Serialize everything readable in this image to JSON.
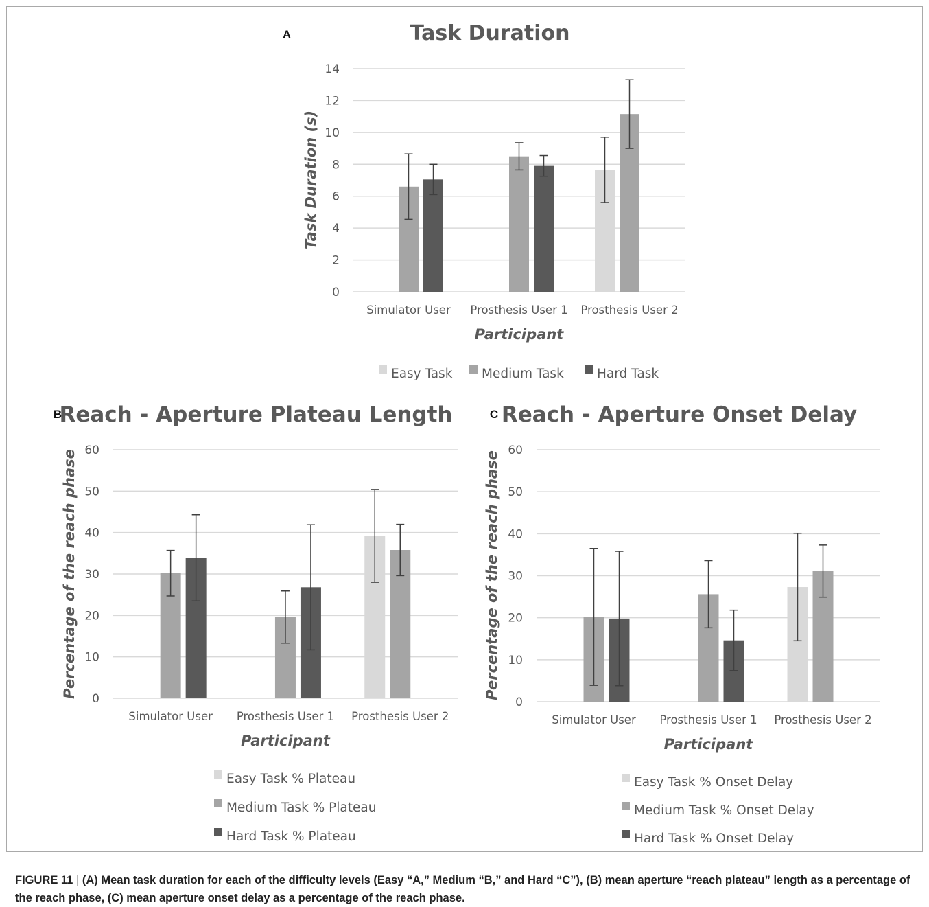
{
  "figure": {
    "caption_label": "FIGURE 11",
    "caption_sep": "|",
    "caption_text": "(A) Mean task duration for each of the difficulty levels (Easy “A,” Medium “B,” and Hard “C”), (B) mean aperture “reach plateau” length as a percentage of the reach phase, (C) mean aperture onset delay as a percentage of the reach phase."
  },
  "colors": {
    "easy": "#d9d9d9",
    "medium": "#a5a5a5",
    "hard": "#595959",
    "grid": "#d9d9d9",
    "text": "#595959",
    "error_bar": "#404040"
  },
  "chart_data": [
    {
      "panel_label": "A",
      "type": "bar",
      "title": "Task Duration",
      "xlabel": "Participant",
      "ylabel": "Task Duration (s)",
      "ylim": [
        0,
        14
      ],
      "ticks": [
        "0",
        "2",
        "4",
        "6",
        "8",
        "10",
        "12",
        "14"
      ],
      "categories": [
        "Simulator User",
        "Prosthesis User 1",
        "Prosthesis User 2"
      ],
      "legend_position": "bottom",
      "series": [
        {
          "name": "Easy Task",
          "color": "#d9d9d9",
          "values": [
            null,
            null,
            7.65
          ],
          "err_low": [
            null,
            null,
            2.05
          ],
          "err_high": [
            null,
            null,
            2.05
          ]
        },
        {
          "name": "Medium Task",
          "color": "#a5a5a5",
          "values": [
            6.6,
            8.5,
            11.15
          ],
          "err_low": [
            2.05,
            0.85,
            2.15
          ],
          "err_high": [
            2.05,
            0.85,
            2.15
          ]
        },
        {
          "name": "Hard Task",
          "color": "#595959",
          "values": [
            7.05,
            7.9,
            null
          ],
          "err_low": [
            0.95,
            0.65,
            null
          ],
          "err_high": [
            0.95,
            0.65,
            null
          ]
        }
      ]
    },
    {
      "panel_label": "B",
      "type": "bar",
      "title": "Reach - Aperture Plateau Length",
      "xlabel": "Participant",
      "ylabel": "Percentage of the reach phase",
      "ylim": [
        0,
        60
      ],
      "ticks": [
        "0",
        "10",
        "20",
        "30",
        "40",
        "50",
        "60"
      ],
      "categories": [
        "Simulator User",
        "Prosthesis User 1",
        "Prosthesis User 2"
      ],
      "legend_position": "bottom",
      "series": [
        {
          "name": "Easy Task % Plateau",
          "color": "#d9d9d9",
          "values": [
            null,
            null,
            39.2
          ],
          "err_low": [
            null,
            null,
            11.2
          ],
          "err_high": [
            null,
            null,
            11.2
          ]
        },
        {
          "name": "Medium Task % Plateau",
          "color": "#a5a5a5",
          "values": [
            30.2,
            19.6,
            35.8
          ],
          "err_low": [
            5.5,
            6.3,
            6.2
          ],
          "err_high": [
            5.5,
            6.3,
            6.2
          ]
        },
        {
          "name": "Hard Task % Plateau",
          "color": "#595959",
          "values": [
            33.9,
            26.8,
            null
          ],
          "err_low": [
            10.4,
            15.1,
            null
          ],
          "err_high": [
            10.4,
            15.1,
            null
          ]
        }
      ]
    },
    {
      "panel_label": "C",
      "type": "bar",
      "title": "Reach - Aperture Onset Delay",
      "xlabel": "Participant",
      "ylabel": "Percentage of the reach phase",
      "ylim": [
        0,
        60
      ],
      "ticks": [
        "0",
        "10",
        "20",
        "30",
        "40",
        "50",
        "60"
      ],
      "categories": [
        "Simulator User",
        "Prosthesis User 1",
        "Prosthesis User 2"
      ],
      "legend_position": "bottom",
      "series": [
        {
          "name": "Easy Task % Onset Delay",
          "color": "#d9d9d9",
          "values": [
            null,
            null,
            27.3
          ],
          "err_low": [
            null,
            null,
            12.8
          ],
          "err_high": [
            null,
            null,
            12.8
          ]
        },
        {
          "name": "Medium Task % Onset Delay",
          "color": "#a5a5a5",
          "values": [
            20.2,
            25.6,
            31.1
          ],
          "err_low": [
            16.3,
            8.0,
            6.2
          ],
          "err_high": [
            16.3,
            8.0,
            6.2
          ]
        },
        {
          "name": "Hard Task % Onset Delay",
          "color": "#595959",
          "values": [
            19.8,
            14.6,
            null
          ],
          "err_low": [
            16.0,
            7.2,
            null
          ],
          "err_high": [
            16.0,
            7.2,
            null
          ]
        }
      ]
    }
  ]
}
